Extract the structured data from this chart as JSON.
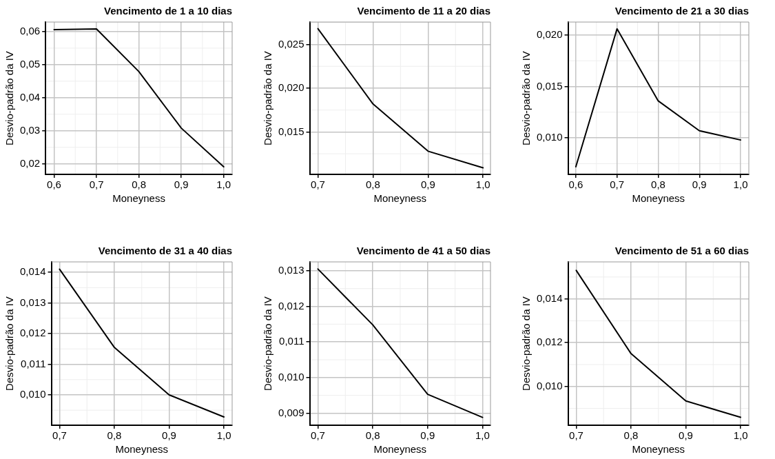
{
  "chart_data": [
    {
      "type": "line",
      "title": "Vencimento de 1 a 10 dias",
      "xlabel": "Moneyness",
      "ylabel": "Desvio-padrão da IV",
      "x": [
        0.6,
        0.7,
        0.8,
        0.9,
        1.0
      ],
      "values": [
        0.0606,
        0.0608,
        0.0479,
        0.0308,
        0.0191
      ],
      "color": "#000000",
      "xlim": [
        0.58,
        1.02
      ],
      "xticks": [
        {
          "value": 0.6,
          "label": "0,6"
        },
        {
          "value": 0.7,
          "label": "0,7"
        },
        {
          "value": 0.8,
          "label": "0,8"
        },
        {
          "value": 0.9,
          "label": "0,9"
        },
        {
          "value": 1.0,
          "label": "1,0"
        }
      ],
      "ylim": [
        0.0168,
        0.0629
      ],
      "yticks": [
        {
          "value": 0.02,
          "label": "0,02"
        },
        {
          "value": 0.03,
          "label": "0,03"
        },
        {
          "value": 0.04,
          "label": "0,04"
        },
        {
          "value": 0.05,
          "label": "0,05"
        },
        {
          "value": 0.06,
          "label": "0,06"
        }
      ],
      "grid": true,
      "legend": false,
      "marker": "none",
      "line_style": "solid"
    },
    {
      "type": "line",
      "title": "Vencimento de 11 a 20 dias",
      "xlabel": "Moneyness",
      "ylabel": "Desvio-padrão da IV",
      "x": [
        0.7,
        0.8,
        0.9,
        1.0
      ],
      "values": [
        0.0268,
        0.0182,
        0.0128,
        0.0109
      ],
      "color": "#000000",
      "xlim": [
        0.685,
        1.0135
      ],
      "xticks": [
        {
          "value": 0.7,
          "label": "0,7"
        },
        {
          "value": 0.8,
          "label": "0,8"
        },
        {
          "value": 0.9,
          "label": "0,9"
        },
        {
          "value": 1.0,
          "label": "1,0"
        }
      ],
      "ylim": [
        0.01015,
        0.02756
      ],
      "yticks": [
        {
          "value": 0.015,
          "label": "0,015"
        },
        {
          "value": 0.02,
          "label": "0,020"
        },
        {
          "value": 0.025,
          "label": "0,025"
        }
      ],
      "grid": true,
      "legend": false,
      "marker": "none",
      "line_style": "solid"
    },
    {
      "type": "line",
      "title": "Vencimento de 21 a 30 dias",
      "xlabel": "Moneyness",
      "ylabel": "Desvio-padrão da IV",
      "x": [
        0.6,
        0.7,
        0.8,
        0.9,
        1.0
      ],
      "values": [
        0.0072,
        0.0206,
        0.0136,
        0.0107,
        0.0098
      ],
      "color": "#000000",
      "xlim": [
        0.581,
        1.02
      ],
      "xticks": [
        {
          "value": 0.6,
          "label": "0,6"
        },
        {
          "value": 0.7,
          "label": "0,7"
        },
        {
          "value": 0.8,
          "label": "0,8"
        },
        {
          "value": 0.9,
          "label": "0,9"
        },
        {
          "value": 1.0,
          "label": "1,0"
        }
      ],
      "ylim": [
        0.00646,
        0.02126
      ],
      "yticks": [
        {
          "value": 0.01,
          "label": "0,010"
        },
        {
          "value": 0.015,
          "label": "0,015"
        },
        {
          "value": 0.02,
          "label": "0,020"
        }
      ],
      "grid": true,
      "legend": false,
      "marker": "none",
      "line_style": "solid"
    },
    {
      "type": "line",
      "title": "Vencimento de 31 a 40 dias",
      "xlabel": "Moneyness",
      "ylabel": "Desvio-padrão da IV",
      "x": [
        0.7,
        0.8,
        0.9,
        1.0
      ],
      "values": [
        0.0141,
        0.01155,
        0.01,
        0.00928
      ],
      "color": "#000000",
      "xlim": [
        0.685,
        1.015
      ],
      "xticks": [
        {
          "value": 0.7,
          "label": "0,7"
        },
        {
          "value": 0.8,
          "label": "0,8"
        },
        {
          "value": 0.9,
          "label": "0,9"
        },
        {
          "value": 1.0,
          "label": "1,0"
        }
      ],
      "ylim": [
        0.00901,
        0.01434
      ],
      "yticks": [
        {
          "value": 0.01,
          "label": "0,010"
        },
        {
          "value": 0.011,
          "label": "0,011"
        },
        {
          "value": 0.012,
          "label": "0,012"
        },
        {
          "value": 0.013,
          "label": "0,013"
        },
        {
          "value": 0.014,
          "label": "0,014"
        }
      ],
      "grid": true,
      "legend": false,
      "marker": "none",
      "line_style": "solid"
    },
    {
      "type": "line",
      "title": "Vencimento de 41 a 50 dias",
      "xlabel": "Moneyness",
      "ylabel": "Desvio-padrão da IV",
      "x": [
        0.7,
        0.8,
        0.9,
        1.0
      ],
      "values": [
        0.01305,
        0.01148,
        0.00953,
        0.00888
      ],
      "color": "#000000",
      "xlim": [
        0.685,
        1.0145
      ],
      "xticks": [
        {
          "value": 0.7,
          "label": "0,7"
        },
        {
          "value": 0.8,
          "label": "0,8"
        },
        {
          "value": 0.9,
          "label": "0,9"
        },
        {
          "value": 1.0,
          "label": "1,0"
        }
      ],
      "ylim": [
        0.00866,
        0.01325
      ],
      "yticks": [
        {
          "value": 0.009,
          "label": "0,009"
        },
        {
          "value": 0.01,
          "label": "0,010"
        },
        {
          "value": 0.011,
          "label": "0,011"
        },
        {
          "value": 0.012,
          "label": "0,012"
        },
        {
          "value": 0.013,
          "label": "0,013"
        }
      ],
      "grid": true,
      "legend": false,
      "marker": "none",
      "line_style": "solid"
    },
    {
      "type": "line",
      "title": "Vencimento de 51 a 60 dias",
      "xlabel": "Moneyness",
      "ylabel": "Desvio-padrão da IV",
      "x": [
        0.7,
        0.8,
        0.9,
        1.0
      ],
      "values": [
        0.0153,
        0.0115,
        0.00934,
        0.00859
      ],
      "color": "#000000",
      "xlim": [
        0.685,
        1.015
      ],
      "xticks": [
        {
          "value": 0.7,
          "label": "0,7"
        },
        {
          "value": 0.8,
          "label": "0,8"
        },
        {
          "value": 0.9,
          "label": "0,9"
        },
        {
          "value": 1.0,
          "label": "1,0"
        }
      ],
      "ylim": [
        0.00823,
        0.01569
      ],
      "yticks": [
        {
          "value": 0.01,
          "label": "0,010"
        },
        {
          "value": 0.012,
          "label": "0,012"
        },
        {
          "value": 0.014,
          "label": "0,014"
        }
      ],
      "grid": true,
      "legend": false,
      "marker": "none",
      "line_style": "solid"
    }
  ]
}
